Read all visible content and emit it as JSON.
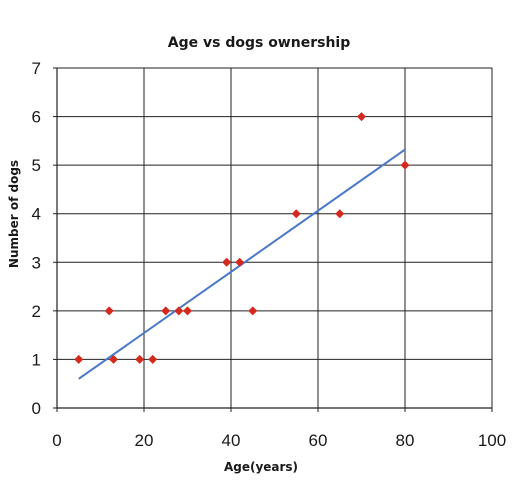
{
  "chart_data": {
    "type": "scatter",
    "title": "Age vs dogs ownership",
    "xlabel": "Age(years)",
    "ylabel": "Number of dogs",
    "xlim": [
      0,
      100
    ],
    "ylim": [
      0,
      7
    ],
    "x_ticks": [
      "0",
      "20",
      "40",
      "60",
      "80",
      "100"
    ],
    "y_ticks": [
      "0",
      "1",
      "2",
      "3",
      "4",
      "5",
      "6",
      "7"
    ],
    "grid": true,
    "series": [
      {
        "points": [
          {
            "x": 5,
            "y": 1
          },
          {
            "x": 12,
            "y": 2
          },
          {
            "x": 13,
            "y": 1
          },
          {
            "x": 19,
            "y": 1
          },
          {
            "x": 22,
            "y": 1
          },
          {
            "x": 25,
            "y": 2
          },
          {
            "x": 28,
            "y": 2
          },
          {
            "x": 30,
            "y": 2
          },
          {
            "x": 39,
            "y": 3
          },
          {
            "x": 42,
            "y": 3
          },
          {
            "x": 45,
            "y": 2
          },
          {
            "x": 55,
            "y": 4
          },
          {
            "x": 65,
            "y": 4
          },
          {
            "x": 70,
            "y": 6
          },
          {
            "x": 80,
            "y": 5
          }
        ],
        "color": "#d42a1e"
      }
    ],
    "trendline": {
      "type": "linear",
      "x": [
        5,
        80
      ],
      "y": [
        0.6,
        5.32
      ],
      "color": "#4a78c8"
    }
  }
}
